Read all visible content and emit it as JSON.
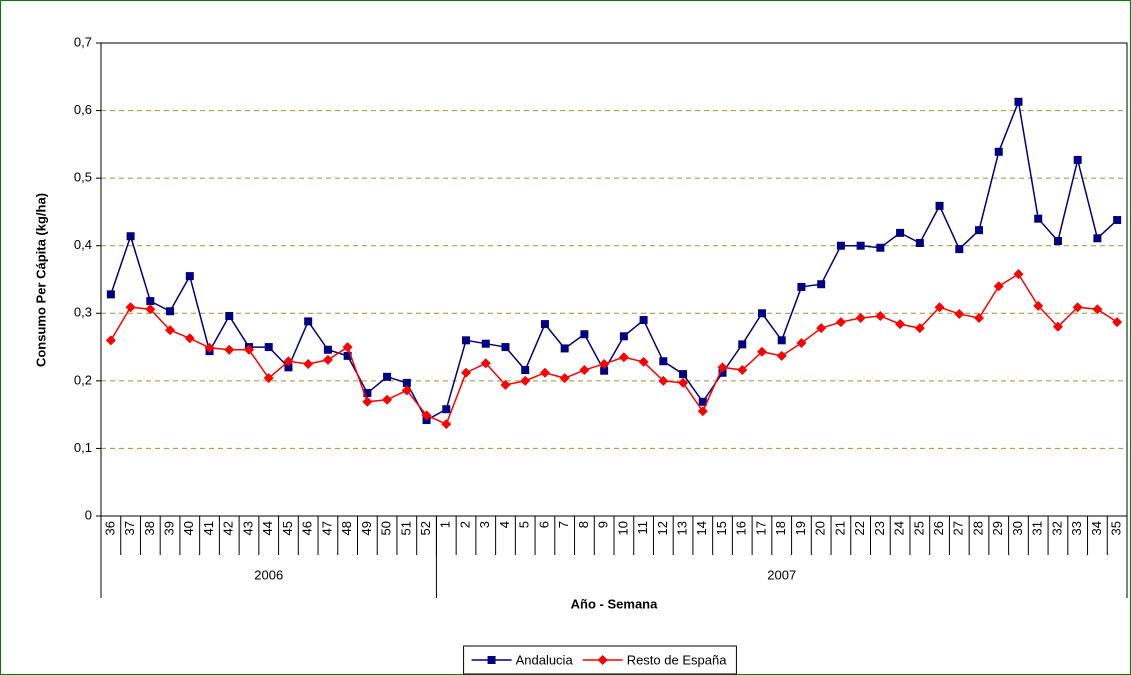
{
  "chart_data": {
    "type": "line",
    "x_label": "Año - Semana",
    "y_label": "Consumo Per Cápita (kg/ha)",
    "category_groups": [
      {
        "label": "2006",
        "categories": [
          "36",
          "37",
          "38",
          "39",
          "40",
          "41",
          "42",
          "43",
          "44",
          "45",
          "46",
          "47",
          "48",
          "49",
          "50",
          "51",
          "52"
        ]
      },
      {
        "label": "2007",
        "categories": [
          "1",
          "2",
          "3",
          "4",
          "5",
          "6",
          "7",
          "8",
          "9",
          "10",
          "11",
          "12",
          "13",
          "14",
          "15",
          "16",
          "17",
          "18",
          "19",
          "20",
          "21",
          "22",
          "23",
          "24",
          "25",
          "26",
          "27",
          "28",
          "29",
          "30",
          "31",
          "32",
          "33",
          "34",
          "35"
        ]
      }
    ],
    "series": [
      {
        "name": "Andalucia",
        "color": "#000080",
        "marker": "square",
        "values": [
          0.328,
          0.414,
          0.318,
          0.303,
          0.355,
          0.244,
          0.296,
          0.25,
          0.25,
          0.22,
          0.288,
          0.246,
          0.237,
          0.182,
          0.206,
          0.197,
          0.142,
          0.158,
          0.26,
          0.255,
          0.25,
          0.216,
          0.284,
          0.248,
          0.269,
          0.215,
          0.266,
          0.29,
          0.229,
          0.21,
          0.169,
          0.212,
          0.254,
          0.3,
          0.26,
          0.339,
          0.343,
          0.4,
          0.4,
          0.397,
          0.419,
          0.404,
          0.459,
          0.395,
          0.423,
          0.539,
          0.613,
          0.44,
          0.407,
          0.527,
          0.411,
          0.438
        ]
      },
      {
        "name": "Resto de España",
        "color": "#ff0000",
        "marker": "diamond",
        "values": [
          0.26,
          0.309,
          0.306,
          0.275,
          0.263,
          0.249,
          0.246,
          0.246,
          0.204,
          0.229,
          0.225,
          0.231,
          0.25,
          0.169,
          0.172,
          0.186,
          0.149,
          0.136,
          0.212,
          0.226,
          0.194,
          0.2,
          0.212,
          0.204,
          0.216,
          0.225,
          0.235,
          0.228,
          0.2,
          0.197,
          0.155,
          0.22,
          0.216,
          0.243,
          0.237,
          0.256,
          0.278,
          0.287,
          0.293,
          0.296,
          0.284,
          0.278,
          0.309,
          0.299,
          0.293,
          0.34,
          0.358,
          0.311,
          0.28,
          0.309,
          0.306,
          0.287
        ]
      }
    ],
    "ylim": [
      0,
      0.7
    ],
    "yticks": [
      0,
      {
        "value": 0.1,
        "label": "0,1"
      },
      {
        "value": 0.2,
        "label": "0,2"
      },
      {
        "value": 0.3,
        "label": "0,3"
      },
      {
        "value": 0.4,
        "label": "0,4"
      },
      {
        "value": 0.5,
        "label": "0,5"
      },
      {
        "value": 0.6,
        "label": "0,6"
      },
      {
        "value": 0.7,
        "label": "0,7"
      }
    ],
    "grid": true,
    "legend": "bottom"
  }
}
